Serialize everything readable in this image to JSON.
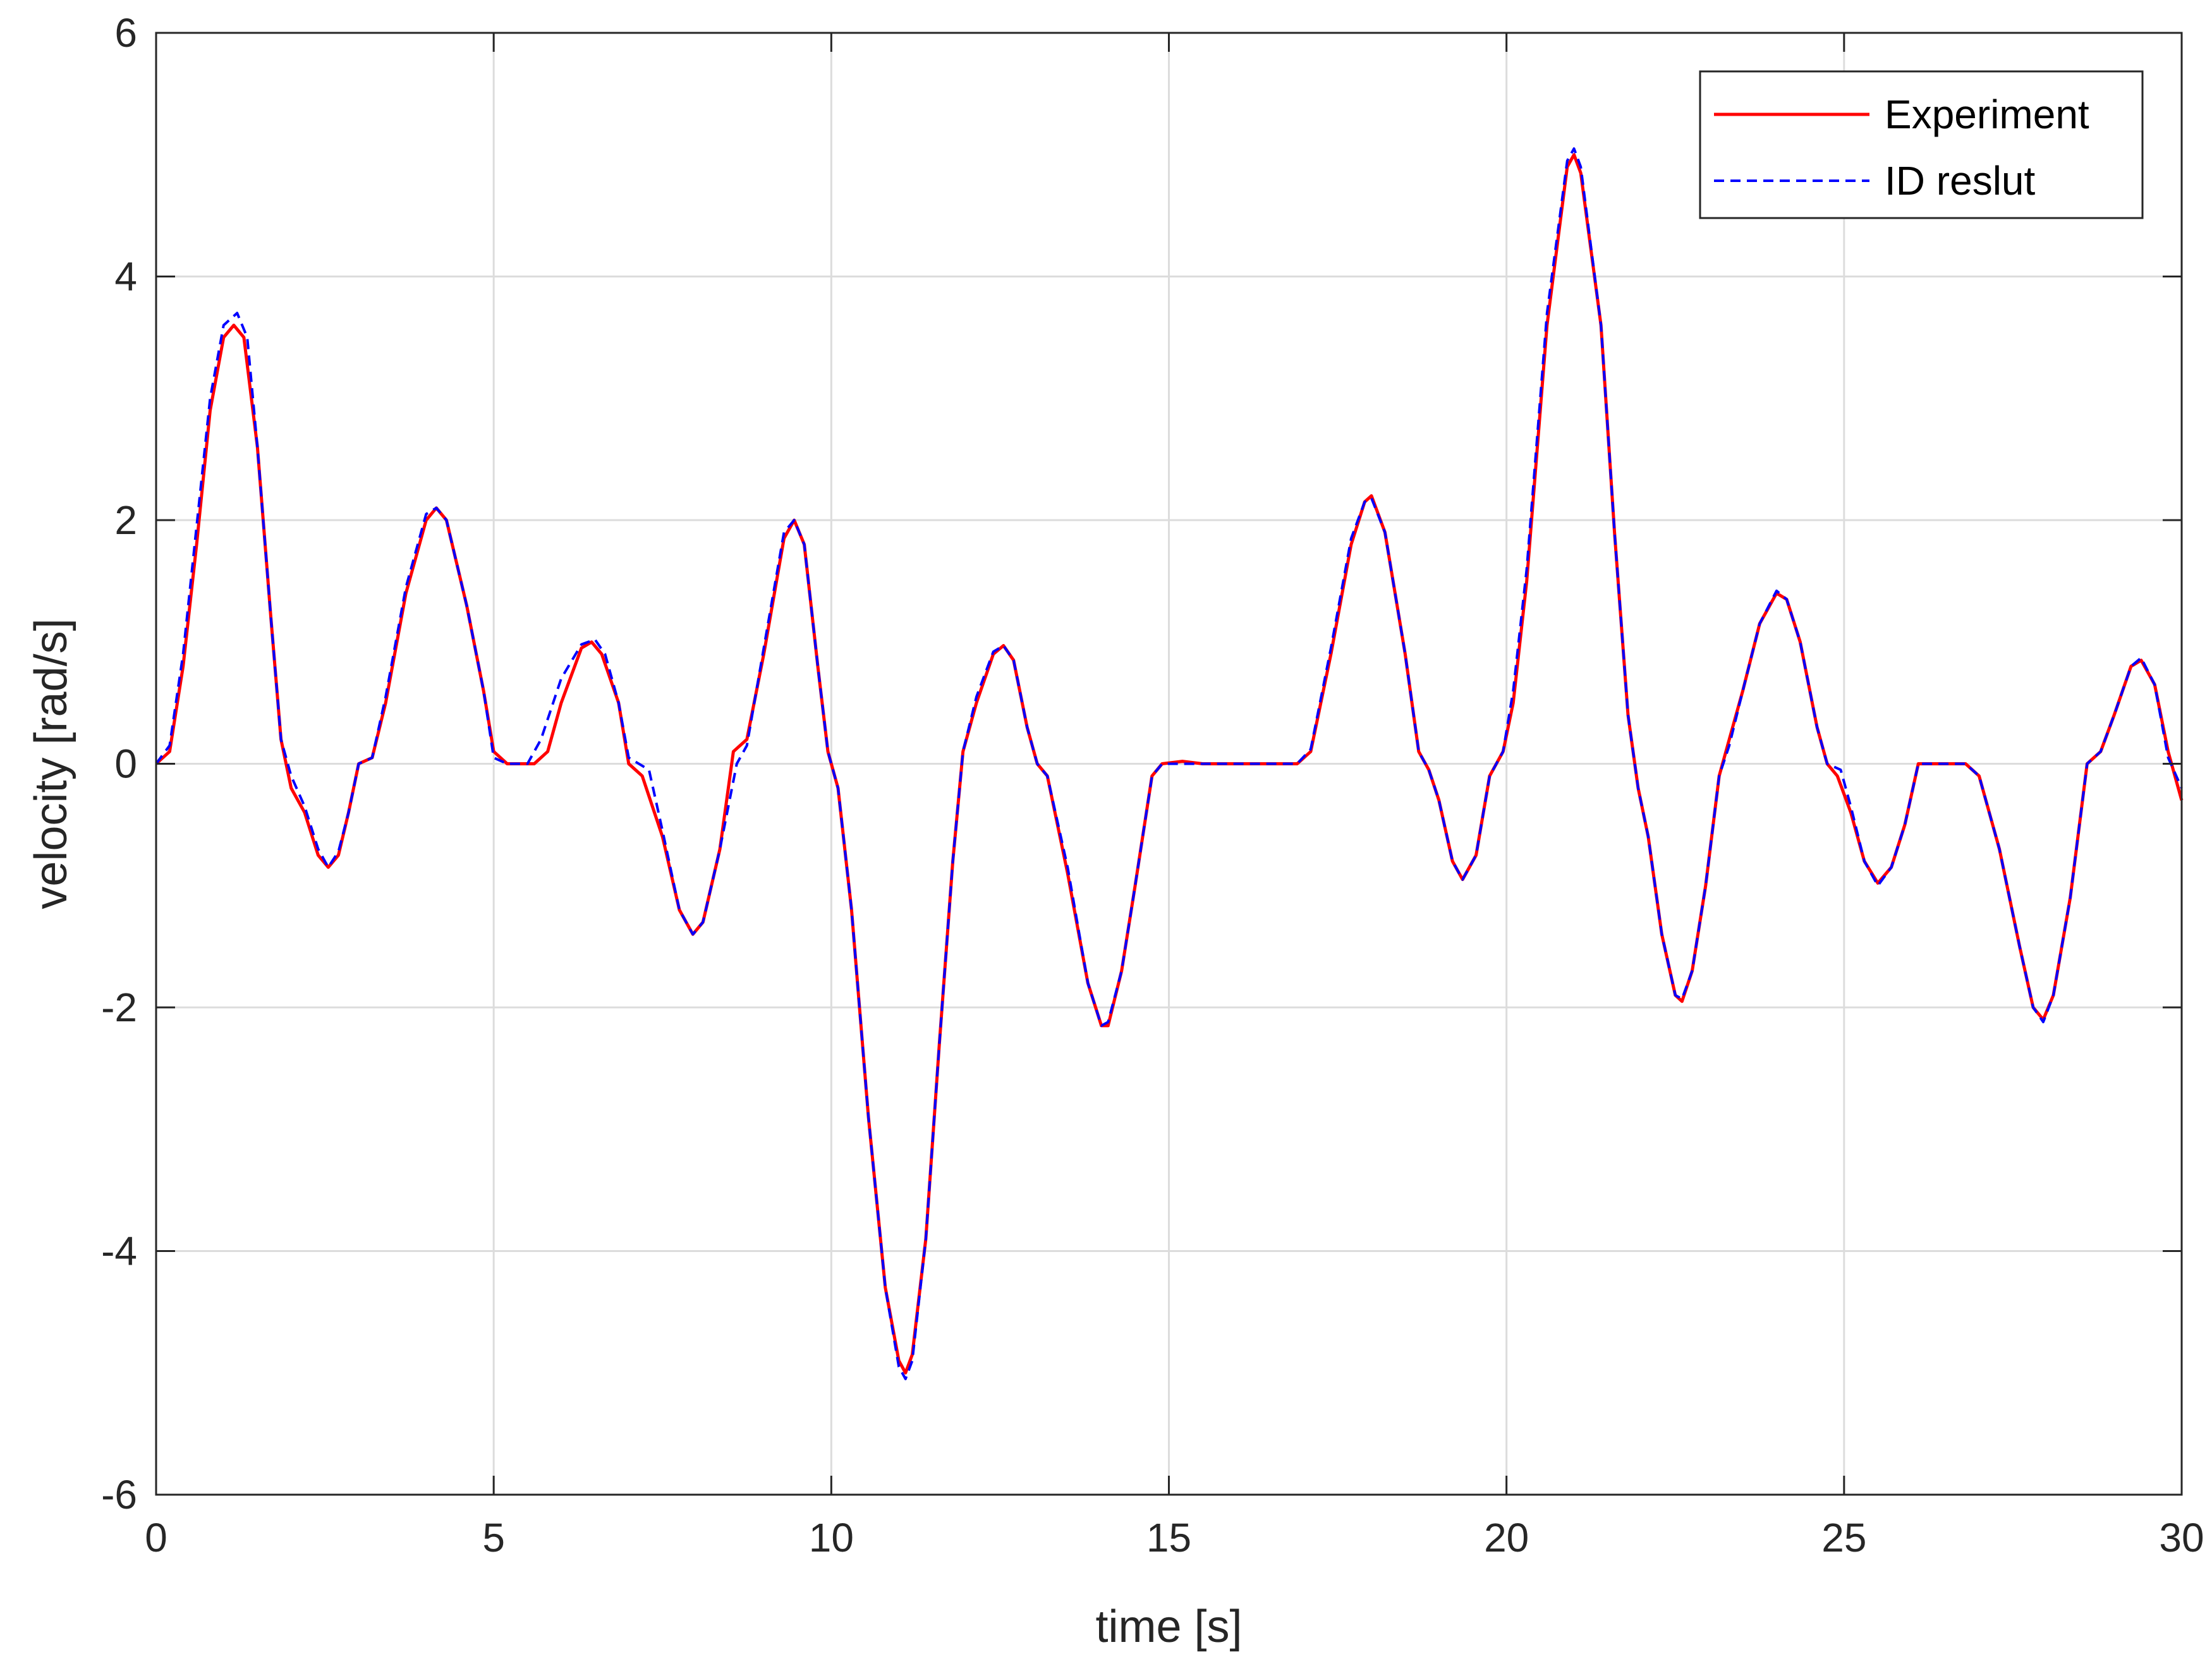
{
  "chart_data": {
    "type": "line",
    "xlabel": "time [s]",
    "ylabel": "velocity [rad/s]",
    "xlim": [
      0,
      30
    ],
    "ylim": [
      -6,
      6
    ],
    "xticks": [
      0,
      5,
      10,
      15,
      20,
      25,
      30
    ],
    "yticks": [
      -6,
      -4,
      -2,
      0,
      2,
      4,
      6
    ],
    "xtick_labels": [
      "0",
      "5",
      "10",
      "15",
      "20",
      "25",
      "30"
    ],
    "ytick_labels": [
      "-6",
      "-4",
      "-2",
      "0",
      "2",
      "4",
      "6"
    ],
    "grid": true,
    "legend_position": "top-right",
    "series": [
      {
        "name": "Experiment",
        "color": "#ff0000",
        "dash": "solid",
        "points": [
          [
            0,
            0
          ],
          [
            0.2,
            0.1
          ],
          [
            0.4,
            0.8
          ],
          [
            0.6,
            1.8
          ],
          [
            0.8,
            2.9
          ],
          [
            1.0,
            3.5
          ],
          [
            1.15,
            3.6
          ],
          [
            1.3,
            3.5
          ],
          [
            1.5,
            2.6
          ],
          [
            1.7,
            1.2
          ],
          [
            1.85,
            0.2
          ],
          [
            2.0,
            -0.2
          ],
          [
            2.2,
            -0.4
          ],
          [
            2.4,
            -0.75
          ],
          [
            2.55,
            -0.85
          ],
          [
            2.7,
            -0.75
          ],
          [
            2.85,
            -0.4
          ],
          [
            3.0,
            0.0
          ],
          [
            3.2,
            0.05
          ],
          [
            3.4,
            0.5
          ],
          [
            3.7,
            1.4
          ],
          [
            4.0,
            2.0
          ],
          [
            4.15,
            2.1
          ],
          [
            4.3,
            2.0
          ],
          [
            4.6,
            1.3
          ],
          [
            4.85,
            0.6
          ],
          [
            5.0,
            0.1
          ],
          [
            5.2,
            0.0
          ],
          [
            5.6,
            0.0
          ],
          [
            5.8,
            0.1
          ],
          [
            6.0,
            0.5
          ],
          [
            6.3,
            0.95
          ],
          [
            6.45,
            1.0
          ],
          [
            6.6,
            0.9
          ],
          [
            6.85,
            0.5
          ],
          [
            7.0,
            0.0
          ],
          [
            7.2,
            -0.1
          ],
          [
            7.5,
            -0.6
          ],
          [
            7.75,
            -1.2
          ],
          [
            7.95,
            -1.4
          ],
          [
            8.1,
            -1.3
          ],
          [
            8.35,
            -0.7
          ],
          [
            8.55,
            0.1
          ],
          [
            8.75,
            0.2
          ],
          [
            9.0,
            0.9
          ],
          [
            9.3,
            1.85
          ],
          [
            9.45,
            2.0
          ],
          [
            9.6,
            1.8
          ],
          [
            9.8,
            0.8
          ],
          [
            9.95,
            0.1
          ],
          [
            10.1,
            -0.2
          ],
          [
            10.3,
            -1.2
          ],
          [
            10.55,
            -2.9
          ],
          [
            10.8,
            -4.3
          ],
          [
            11.0,
            -4.9
          ],
          [
            11.1,
            -5.0
          ],
          [
            11.2,
            -4.85
          ],
          [
            11.4,
            -3.9
          ],
          [
            11.6,
            -2.3
          ],
          [
            11.8,
            -0.8
          ],
          [
            11.95,
            0.1
          ],
          [
            12.15,
            0.5
          ],
          [
            12.4,
            0.9
          ],
          [
            12.55,
            0.97
          ],
          [
            12.7,
            0.85
          ],
          [
            12.9,
            0.3
          ],
          [
            13.05,
            0.0
          ],
          [
            13.2,
            -0.1
          ],
          [
            13.5,
            -0.9
          ],
          [
            13.8,
            -1.8
          ],
          [
            14.0,
            -2.15
          ],
          [
            14.1,
            -2.15
          ],
          [
            14.3,
            -1.7
          ],
          [
            14.5,
            -1.0
          ],
          [
            14.75,
            -0.1
          ],
          [
            14.9,
            0.0
          ],
          [
            15.2,
            0.02
          ],
          [
            15.5,
            0.0
          ],
          [
            16.0,
            0.0
          ],
          [
            16.5,
            0.0
          ],
          [
            16.9,
            0.0
          ],
          [
            17.1,
            0.1
          ],
          [
            17.4,
            0.9
          ],
          [
            17.7,
            1.8
          ],
          [
            17.9,
            2.15
          ],
          [
            18.0,
            2.2
          ],
          [
            18.2,
            1.9
          ],
          [
            18.5,
            0.9
          ],
          [
            18.7,
            0.1
          ],
          [
            18.85,
            -0.05
          ],
          [
            19.0,
            -0.3
          ],
          [
            19.2,
            -0.8
          ],
          [
            19.35,
            -0.95
          ],
          [
            19.55,
            -0.75
          ],
          [
            19.75,
            -0.1
          ],
          [
            19.95,
            0.1
          ],
          [
            20.1,
            0.5
          ],
          [
            20.3,
            1.5
          ],
          [
            20.6,
            3.6
          ],
          [
            20.9,
            4.9
          ],
          [
            21.0,
            5.0
          ],
          [
            21.1,
            4.85
          ],
          [
            21.4,
            3.6
          ],
          [
            21.6,
            1.9
          ],
          [
            21.8,
            0.4
          ],
          [
            21.95,
            -0.2
          ],
          [
            22.1,
            -0.6
          ],
          [
            22.3,
            -1.4
          ],
          [
            22.5,
            -1.9
          ],
          [
            22.6,
            -1.95
          ],
          [
            22.75,
            -1.7
          ],
          [
            22.95,
            -1.0
          ],
          [
            23.15,
            -0.1
          ],
          [
            23.3,
            0.2
          ],
          [
            23.5,
            0.6
          ],
          [
            23.75,
            1.15
          ],
          [
            24.0,
            1.4
          ],
          [
            24.15,
            1.35
          ],
          [
            24.35,
            1.0
          ],
          [
            24.6,
            0.3
          ],
          [
            24.75,
            0.0
          ],
          [
            24.9,
            -0.1
          ],
          [
            25.1,
            -0.4
          ],
          [
            25.3,
            -0.8
          ],
          [
            25.5,
            -0.98
          ],
          [
            25.7,
            -0.85
          ],
          [
            25.9,
            -0.5
          ],
          [
            26.1,
            0.0
          ],
          [
            26.3,
            0.0
          ],
          [
            26.6,
            0.0
          ],
          [
            26.8,
            0.0
          ],
          [
            27.0,
            -0.1
          ],
          [
            27.3,
            -0.7
          ],
          [
            27.6,
            -1.5
          ],
          [
            27.8,
            -2.0
          ],
          [
            27.95,
            -2.1
          ],
          [
            28.1,
            -1.9
          ],
          [
            28.35,
            -1.1
          ],
          [
            28.6,
            0.0
          ],
          [
            28.8,
            0.1
          ],
          [
            29.0,
            0.4
          ],
          [
            29.25,
            0.8
          ],
          [
            29.4,
            0.85
          ],
          [
            29.6,
            0.65
          ],
          [
            29.8,
            0.1
          ],
          [
            30.0,
            -0.3
          ]
        ]
      },
      {
        "name": "ID reslut",
        "color": "#0000ff",
        "dash": "dashed",
        "points": [
          [
            0,
            0
          ],
          [
            0.2,
            0.15
          ],
          [
            0.4,
            0.9
          ],
          [
            0.6,
            1.95
          ],
          [
            0.8,
            3.0
          ],
          [
            1.0,
            3.6
          ],
          [
            1.2,
            3.7
          ],
          [
            1.35,
            3.5
          ],
          [
            1.5,
            2.6
          ],
          [
            1.7,
            1.2
          ],
          [
            1.85,
            0.2
          ],
          [
            2.0,
            -0.1
          ],
          [
            2.2,
            -0.35
          ],
          [
            2.4,
            -0.7
          ],
          [
            2.55,
            -0.85
          ],
          [
            2.7,
            -0.72
          ],
          [
            2.85,
            -0.4
          ],
          [
            3.0,
            0.0
          ],
          [
            3.2,
            0.05
          ],
          [
            3.4,
            0.55
          ],
          [
            3.7,
            1.45
          ],
          [
            4.0,
            2.05
          ],
          [
            4.15,
            2.1
          ],
          [
            4.3,
            2.0
          ],
          [
            4.6,
            1.3
          ],
          [
            4.85,
            0.6
          ],
          [
            5.0,
            0.05
          ],
          [
            5.2,
            0.0
          ],
          [
            5.5,
            0.0
          ],
          [
            5.7,
            0.2
          ],
          [
            6.0,
            0.7
          ],
          [
            6.3,
            0.98
          ],
          [
            6.5,
            1.02
          ],
          [
            6.65,
            0.9
          ],
          [
            6.85,
            0.5
          ],
          [
            7.0,
            0.05
          ],
          [
            7.3,
            -0.05
          ],
          [
            7.5,
            -0.55
          ],
          [
            7.75,
            -1.2
          ],
          [
            7.95,
            -1.4
          ],
          [
            8.1,
            -1.3
          ],
          [
            8.35,
            -0.7
          ],
          [
            8.6,
            0.0
          ],
          [
            8.75,
            0.15
          ],
          [
            9.0,
            0.95
          ],
          [
            9.3,
            1.9
          ],
          [
            9.45,
            2.0
          ],
          [
            9.6,
            1.8
          ],
          [
            9.8,
            0.8
          ],
          [
            9.95,
            0.1
          ],
          [
            10.1,
            -0.2
          ],
          [
            10.3,
            -1.2
          ],
          [
            10.55,
            -2.9
          ],
          [
            10.8,
            -4.3
          ],
          [
            11.0,
            -4.95
          ],
          [
            11.1,
            -5.05
          ],
          [
            11.2,
            -4.9
          ],
          [
            11.4,
            -3.9
          ],
          [
            11.6,
            -2.3
          ],
          [
            11.8,
            -0.8
          ],
          [
            11.95,
            0.1
          ],
          [
            12.15,
            0.55
          ],
          [
            12.4,
            0.92
          ],
          [
            12.55,
            0.97
          ],
          [
            12.7,
            0.85
          ],
          [
            12.9,
            0.3
          ],
          [
            13.05,
            0.0
          ],
          [
            13.2,
            -0.1
          ],
          [
            13.5,
            -0.85
          ],
          [
            13.8,
            -1.8
          ],
          [
            14.0,
            -2.15
          ],
          [
            14.1,
            -2.12
          ],
          [
            14.3,
            -1.7
          ],
          [
            14.5,
            -1.0
          ],
          [
            14.75,
            -0.1
          ],
          [
            14.9,
            0.0
          ],
          [
            15.2,
            0.0
          ],
          [
            15.5,
            0.0
          ],
          [
            16.0,
            0.0
          ],
          [
            16.5,
            0.0
          ],
          [
            16.9,
            0.0
          ],
          [
            17.1,
            0.12
          ],
          [
            17.4,
            0.95
          ],
          [
            17.7,
            1.85
          ],
          [
            17.9,
            2.15
          ],
          [
            18.0,
            2.18
          ],
          [
            18.2,
            1.9
          ],
          [
            18.5,
            0.9
          ],
          [
            18.7,
            0.1
          ],
          [
            18.85,
            -0.05
          ],
          [
            19.0,
            -0.3
          ],
          [
            19.2,
            -0.8
          ],
          [
            19.35,
            -0.95
          ],
          [
            19.55,
            -0.75
          ],
          [
            19.75,
            -0.1
          ],
          [
            19.95,
            0.1
          ],
          [
            20.1,
            0.6
          ],
          [
            20.3,
            1.6
          ],
          [
            20.6,
            3.7
          ],
          [
            20.9,
            4.95
          ],
          [
            21.0,
            5.05
          ],
          [
            21.1,
            4.9
          ],
          [
            21.4,
            3.6
          ],
          [
            21.6,
            1.9
          ],
          [
            21.8,
            0.4
          ],
          [
            21.95,
            -0.2
          ],
          [
            22.1,
            -0.6
          ],
          [
            22.3,
            -1.4
          ],
          [
            22.5,
            -1.9
          ],
          [
            22.6,
            -1.93
          ],
          [
            22.75,
            -1.7
          ],
          [
            22.95,
            -1.0
          ],
          [
            23.15,
            -0.1
          ],
          [
            23.3,
            0.15
          ],
          [
            23.5,
            0.6
          ],
          [
            23.75,
            1.15
          ],
          [
            24.0,
            1.42
          ],
          [
            24.15,
            1.35
          ],
          [
            24.35,
            1.0
          ],
          [
            24.6,
            0.3
          ],
          [
            24.75,
            0.0
          ],
          [
            24.95,
            -0.05
          ],
          [
            25.1,
            -0.35
          ],
          [
            25.3,
            -0.8
          ],
          [
            25.5,
            -1.0
          ],
          [
            25.7,
            -0.85
          ],
          [
            25.9,
            -0.5
          ],
          [
            26.1,
            0.0
          ],
          [
            26.3,
            0.0
          ],
          [
            26.6,
            0.0
          ],
          [
            26.8,
            0.0
          ],
          [
            27.0,
            -0.1
          ],
          [
            27.3,
            -0.7
          ],
          [
            27.6,
            -1.5
          ],
          [
            27.8,
            -2.0
          ],
          [
            27.95,
            -2.12
          ],
          [
            28.1,
            -1.9
          ],
          [
            28.35,
            -1.1
          ],
          [
            28.6,
            0.0
          ],
          [
            28.8,
            0.1
          ],
          [
            29.0,
            0.4
          ],
          [
            29.25,
            0.8
          ],
          [
            29.4,
            0.87
          ],
          [
            29.6,
            0.65
          ],
          [
            29.8,
            0.05
          ],
          [
            30.0,
            -0.2
          ]
        ]
      }
    ]
  }
}
